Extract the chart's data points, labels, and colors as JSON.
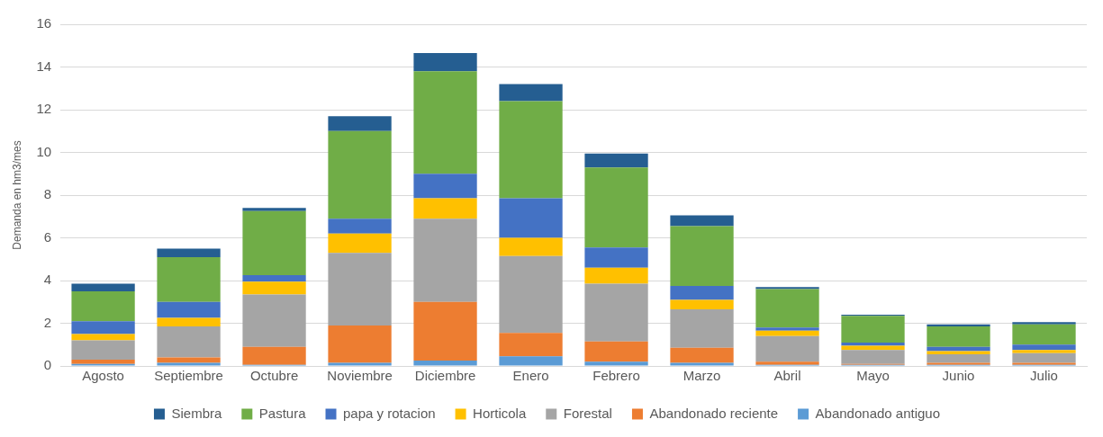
{
  "chart_data": {
    "type": "bar",
    "stacked": true,
    "ylabel": "Demanda en hm3/mes",
    "categories": [
      "Agosto",
      "Septiembre",
      "Octubre",
      "Noviembre",
      "Diciembre",
      "Enero",
      "Febrero",
      "Marzo",
      "Abril",
      "Mayo",
      "Junio",
      "Julio"
    ],
    "series": [
      {
        "name": "Abandonado antiguo",
        "color": "#5b9bd5",
        "values": [
          0.1,
          0.15,
          0.05,
          0.15,
          0.25,
          0.45,
          0.2,
          0.15,
          0.05,
          0.05,
          0.05,
          0.05
        ]
      },
      {
        "name": "Abandonado reciente",
        "color": "#ed7d31",
        "values": [
          0.2,
          0.25,
          0.85,
          1.75,
          2.75,
          1.1,
          0.95,
          0.7,
          0.15,
          0.05,
          0.1,
          0.1
        ]
      },
      {
        "name": "Forestal",
        "color": "#a5a5a5",
        "values": [
          0.9,
          1.45,
          2.45,
          3.4,
          3.9,
          3.6,
          2.7,
          1.8,
          1.2,
          0.65,
          0.4,
          0.45
        ]
      },
      {
        "name": "Horticola",
        "color": "#ffc000",
        "values": [
          0.3,
          0.4,
          0.6,
          0.9,
          0.95,
          0.85,
          0.75,
          0.45,
          0.25,
          0.2,
          0.15,
          0.15
        ]
      },
      {
        "name": "papa y rotacion",
        "color": "#4472c4",
        "values": [
          0.6,
          0.75,
          0.3,
          0.7,
          1.15,
          1.85,
          0.95,
          0.65,
          0.15,
          0.15,
          0.2,
          0.25
        ]
      },
      {
        "name": "Pastura",
        "color": "#70ad47",
        "values": [
          1.4,
          2.1,
          3.0,
          4.1,
          4.8,
          4.55,
          3.75,
          2.8,
          1.8,
          1.25,
          0.95,
          0.95
        ]
      },
      {
        "name": "Siembra",
        "color": "#255e91",
        "values": [
          0.35,
          0.4,
          0.15,
          0.7,
          0.85,
          0.8,
          0.65,
          0.5,
          0.1,
          0.05,
          0.1,
          0.1
        ]
      }
    ],
    "ylim": [
      0,
      16
    ],
    "yticks": [
      0,
      2,
      4,
      6,
      8,
      10,
      12,
      14,
      16
    ],
    "grid": "y",
    "legend": "bottom"
  }
}
